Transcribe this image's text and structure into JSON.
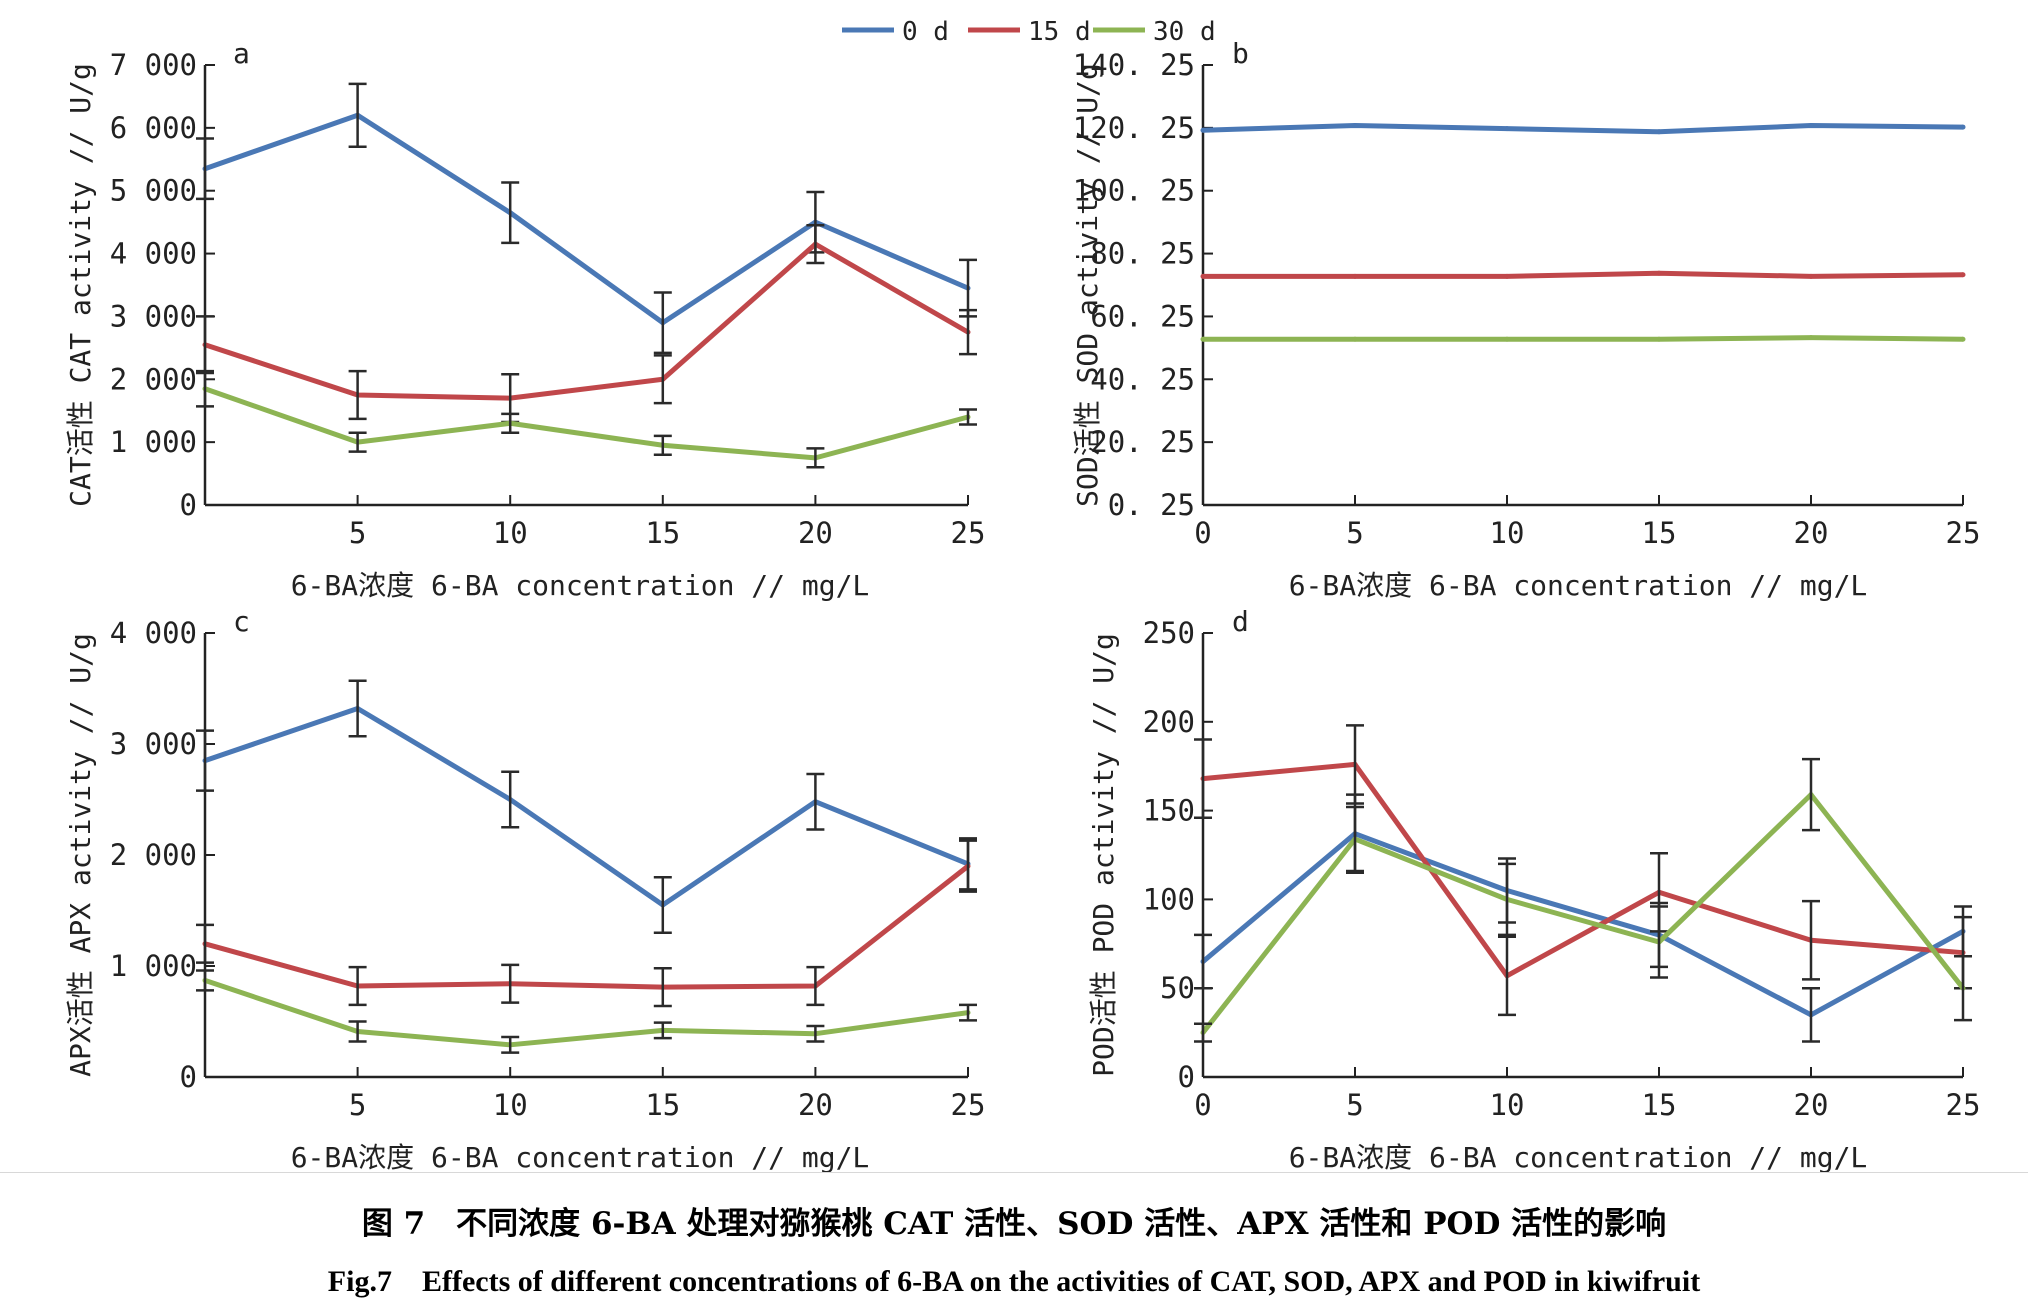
{
  "figure": {
    "caption_zh": "图 7　不同浓度 6-BA 处理对猕猴桃 CAT 活性、SOD 活性、APX 活性和 POD 活性的影响",
    "caption_en": "Fig.7　Effects of different concentrations of 6-BA on the activities of CAT, SOD, APX and POD in kiwifruit"
  },
  "legend": [
    {
      "label": "0 d",
      "color": "#4a78b5"
    },
    {
      "label": "15 d",
      "color": "#c0474a"
    },
    {
      "label": "30 d",
      "color": "#8db453"
    }
  ],
  "chart_data": [
    {
      "type": "line",
      "panel": "a",
      "xlabel": "6-BA浓度 6-BA concentration // mg/L",
      "ylabel": "CAT活性 CAT activity // U/g",
      "xlim": [
        0,
        25
      ],
      "ylim": [
        0,
        7000
      ],
      "x_ticks": [
        0,
        5,
        10,
        15,
        20,
        25
      ],
      "x_tick_labels": [
        "0",
        "5",
        "10",
        "15",
        "20",
        "25"
      ],
      "y_ticks": [
        0,
        1000,
        2000,
        3000,
        4000,
        5000,
        6000,
        7000
      ],
      "y_tick_labels": [
        "0",
        "1 000",
        "2 000",
        "3 000",
        "4 000",
        "5 000",
        "6 000",
        "7 000"
      ],
      "x": [
        0,
        5,
        10,
        15,
        20,
        25
      ],
      "series": [
        {
          "name": "0 d",
          "values": [
            5350,
            6200,
            4650,
            2900,
            4500,
            3450
          ],
          "errors": [
            480,
            500,
            480,
            480,
            480,
            450
          ]
        },
        {
          "name": "15 d",
          "values": [
            2550,
            1750,
            1700,
            2000,
            4150,
            2750
          ],
          "errors": [
            450,
            380,
            380,
            380,
            300,
            350
          ]
        },
        {
          "name": "30 d",
          "values": [
            1850,
            1000,
            1300,
            950,
            750,
            1400
          ],
          "errors": [
            280,
            150,
            150,
            150,
            150,
            120
          ]
        }
      ]
    },
    {
      "type": "line",
      "panel": "b",
      "xlabel": "6-BA浓度 6-BA concentration // mg/L",
      "ylabel": "SOD活性 SOD activity // U/g",
      "xlim": [
        0,
        25
      ],
      "ylim": [
        0.25,
        140.25
      ],
      "x_ticks": [
        0,
        5,
        10,
        15,
        20,
        25
      ],
      "x_tick_labels": [
        "0",
        "5",
        "10",
        "15",
        "20",
        "25"
      ],
      "y_ticks": [
        0.25,
        20.25,
        40.25,
        60.25,
        80.25,
        100.25,
        120.25,
        140.25
      ],
      "y_tick_labels": [
        "0. 25",
        "20. 25",
        "40. 25",
        "60. 25",
        "80. 25",
        "100. 25",
        "120. 25",
        "140. 25"
      ],
      "x": [
        0,
        5,
        10,
        15,
        20,
        25
      ],
      "series": [
        {
          "name": "0 d",
          "values": [
            119.5,
            121,
            120,
            119,
            121,
            120.5
          ]
        },
        {
          "name": "15 d",
          "values": [
            73,
            73,
            73,
            74,
            73,
            73.5
          ]
        },
        {
          "name": "30 d",
          "values": [
            53,
            53,
            53,
            53,
            53.5,
            53
          ]
        }
      ]
    },
    {
      "type": "line",
      "panel": "c",
      "xlabel": "6-BA浓度 6-BA concentration // mg/L",
      "ylabel": "APX活性 APX activity // U/g",
      "xlim": [
        0,
        25
      ],
      "ylim": [
        0,
        4000
      ],
      "x_ticks": [
        0,
        5,
        10,
        15,
        20,
        25
      ],
      "x_tick_labels": [
        "0",
        "5",
        "10",
        "15",
        "20",
        "25"
      ],
      "y_ticks": [
        0,
        1000,
        2000,
        3000,
        4000
      ],
      "y_tick_labels": [
        "0",
        "1 000",
        "2 000",
        "3 000",
        "4 000"
      ],
      "x": [
        0,
        5,
        10,
        15,
        20,
        25
      ],
      "series": [
        {
          "name": "0 d",
          "values": [
            2850,
            3320,
            2500,
            1550,
            2480,
            1920
          ],
          "errors": [
            270,
            250,
            250,
            250,
            250,
            230
          ]
        },
        {
          "name": "15 d",
          "values": [
            1200,
            820,
            840,
            810,
            820,
            1900
          ],
          "errors": [
            170,
            170,
            170,
            170,
            170,
            230
          ]
        },
        {
          "name": "30 d",
          "values": [
            870,
            410,
            290,
            420,
            390,
            580
          ],
          "errors": [
            90,
            90,
            70,
            70,
            70,
            70
          ]
        }
      ]
    },
    {
      "type": "line",
      "panel": "d",
      "xlabel": "6-BA浓度 6-BA concentration // mg/L",
      "ylabel": "POD活性 POD activity // U/g",
      "xlim": [
        0,
        25
      ],
      "ylim": [
        0,
        250
      ],
      "x_ticks": [
        0,
        5,
        10,
        15,
        20,
        25
      ],
      "x_tick_labels": [
        "0",
        "5",
        "10",
        "15",
        "20",
        "25"
      ],
      "y_ticks": [
        0,
        50,
        100,
        150,
        200,
        250
      ],
      "y_tick_labels": [
        "0",
        "50",
        "100",
        "150",
        "200",
        "250"
      ],
      "x": [
        0,
        5,
        10,
        15,
        20,
        25
      ],
      "series": [
        {
          "name": "0 d",
          "values": [
            65,
            137,
            105,
            80,
            35,
            82
          ],
          "errors": [
            15,
            22,
            18,
            18,
            15,
            14
          ]
        },
        {
          "name": "15 d",
          "values": [
            168,
            176,
            57,
            104,
            77,
            70
          ],
          "errors": [
            22,
            22,
            22,
            22,
            22,
            20
          ]
        },
        {
          "name": "30 d",
          "values": [
            25,
            134,
            100,
            76,
            159,
            50
          ],
          "errors": [
            5,
            18,
            20,
            20,
            20,
            18
          ]
        }
      ]
    }
  ]
}
